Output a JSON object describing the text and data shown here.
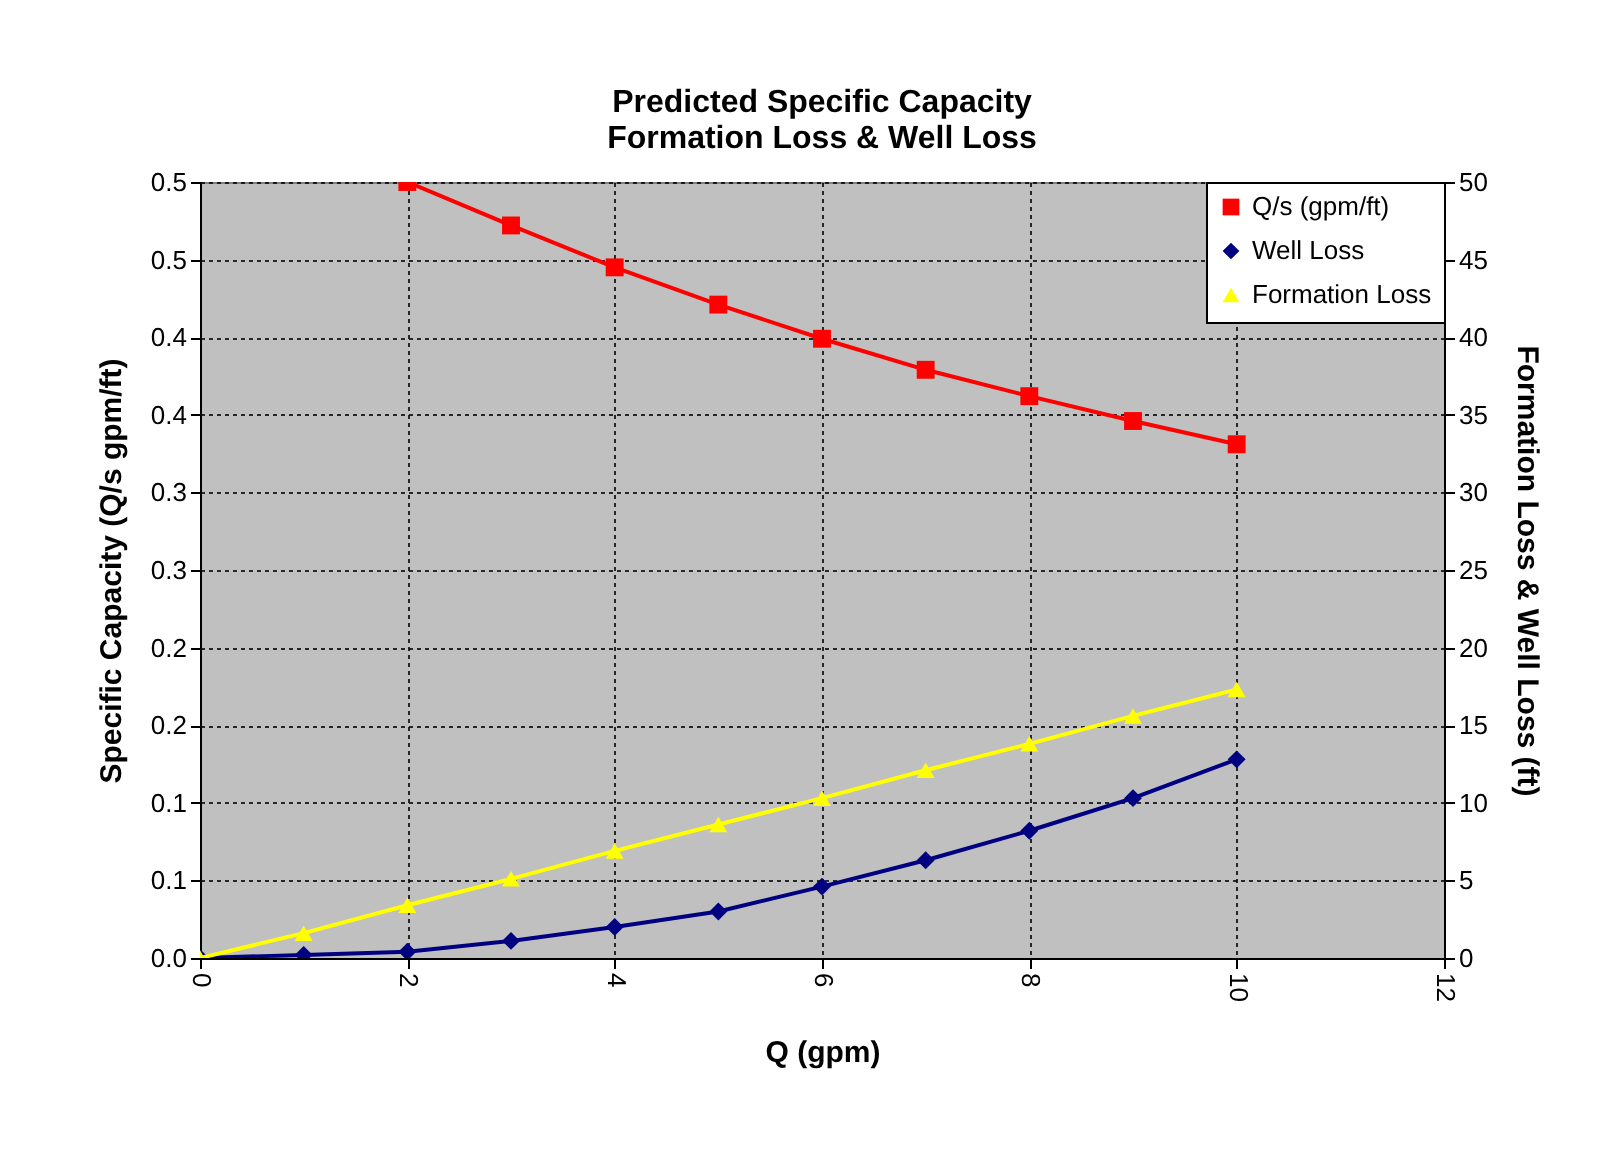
{
  "chart_data": {
    "type": "line",
    "title": "Predicted Specific Capacity\nFormation Loss & Well Loss",
    "xlabel": "Q (gpm)",
    "ylabel": "Specific Capacity (Q/s gpm/ft)",
    "y2label": "Formation Loss & Well Loss (ft)",
    "x": [
      0,
      1,
      2,
      3,
      4,
      5,
      6,
      7,
      8,
      9,
      10
    ],
    "series": [
      {
        "name": "Q/s (gpm/ft)",
        "color": "#ff0000",
        "marker": "square",
        "values": [
          null,
          null,
          0.5,
          0.472,
          0.445,
          0.421,
          0.399,
          0.379,
          0.362,
          0.346,
          0.331
        ]
      },
      {
        "name": "Well Loss",
        "color": "#000080",
        "marker": "diamond",
        "axis": "y2",
        "values": [
          0,
          0.2,
          0.4,
          1.1,
          2.0,
          3.0,
          4.6,
          6.3,
          8.2,
          10.3,
          12.8
        ]
      },
      {
        "name": "Formation Loss",
        "color": "#ffff00",
        "marker": "triangle",
        "axis": "y2",
        "values": [
          0,
          1.6,
          3.4,
          5.1,
          6.9,
          8.6,
          10.3,
          12.1,
          13.8,
          15.6,
          17.3
        ]
      }
    ],
    "xlim": [
      0,
      12
    ],
    "xticks": [
      0,
      2,
      4,
      6,
      8,
      10,
      12
    ],
    "ylim": [
      0,
      0.5
    ],
    "yticks": [
      {
        "value": 0,
        "label": "0.0"
      },
      {
        "value": 0.05,
        "label": "0.1"
      },
      0.1,
      {
        "value": 0.15,
        "label": "0.2"
      },
      0.2,
      {
        "value": 0.25,
        "label": "0.3"
      },
      0.3,
      {
        "value": 0.35,
        "label": "0.4"
      },
      0.4,
      {
        "value": 0.45,
        "label": "0.5"
      },
      0.5
    ],
    "y2lim": [
      0,
      50
    ],
    "y2ticks": [
      0,
      5,
      10,
      15,
      20,
      25,
      30,
      35,
      40,
      45,
      50
    ],
    "grid": true,
    "legend": "top right",
    "line_style": "solid"
  }
}
